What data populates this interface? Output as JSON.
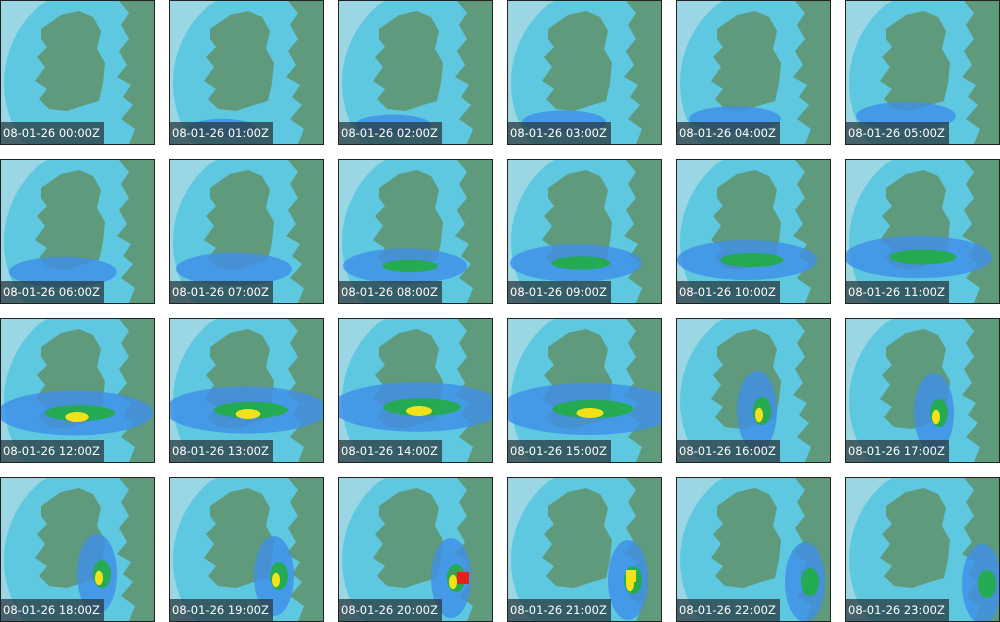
{
  "frames": [
    {
      "timestamp": "08-01-26 00:00Z"
    },
    {
      "timestamp": "08-01-26 01:00Z"
    },
    {
      "timestamp": "08-01-26 02:00Z"
    },
    {
      "timestamp": "08-01-26 03:00Z"
    },
    {
      "timestamp": "08-01-26 04:00Z"
    },
    {
      "timestamp": "08-01-26 05:00Z"
    },
    {
      "timestamp": "08-01-26 06:00Z"
    },
    {
      "timestamp": "08-01-26 07:00Z"
    },
    {
      "timestamp": "08-01-26 08:00Z"
    },
    {
      "timestamp": "08-01-26 09:00Z"
    },
    {
      "timestamp": "08-01-26 10:00Z"
    },
    {
      "timestamp": "08-01-26 11:00Z"
    },
    {
      "timestamp": "08-01-26 12:00Z"
    },
    {
      "timestamp": "08-01-26 13:00Z"
    },
    {
      "timestamp": "08-01-26 14:00Z"
    },
    {
      "timestamp": "08-01-26 15:00Z"
    },
    {
      "timestamp": "08-01-26 16:00Z"
    },
    {
      "timestamp": "08-01-26 17:00Z"
    },
    {
      "timestamp": "08-01-26 18:00Z"
    },
    {
      "timestamp": "08-01-26 19:00Z"
    },
    {
      "timestamp": "08-01-26 20:00Z"
    },
    {
      "timestamp": "08-01-26 21:00Z"
    },
    {
      "timestamp": "08-01-26 22:00Z"
    },
    {
      "timestamp": "08-01-26 23:00Z"
    }
  ],
  "colors": {
    "outside_coverage": "#9ad6e4",
    "radar_coverage": "#5ec8e0",
    "land": "#5f9a7c",
    "precip_light": "#3f8fe8",
    "precip_moderate": "#1fae3a",
    "precip_heavy": "#f2e21a",
    "precip_extreme": "#e8201a"
  }
}
